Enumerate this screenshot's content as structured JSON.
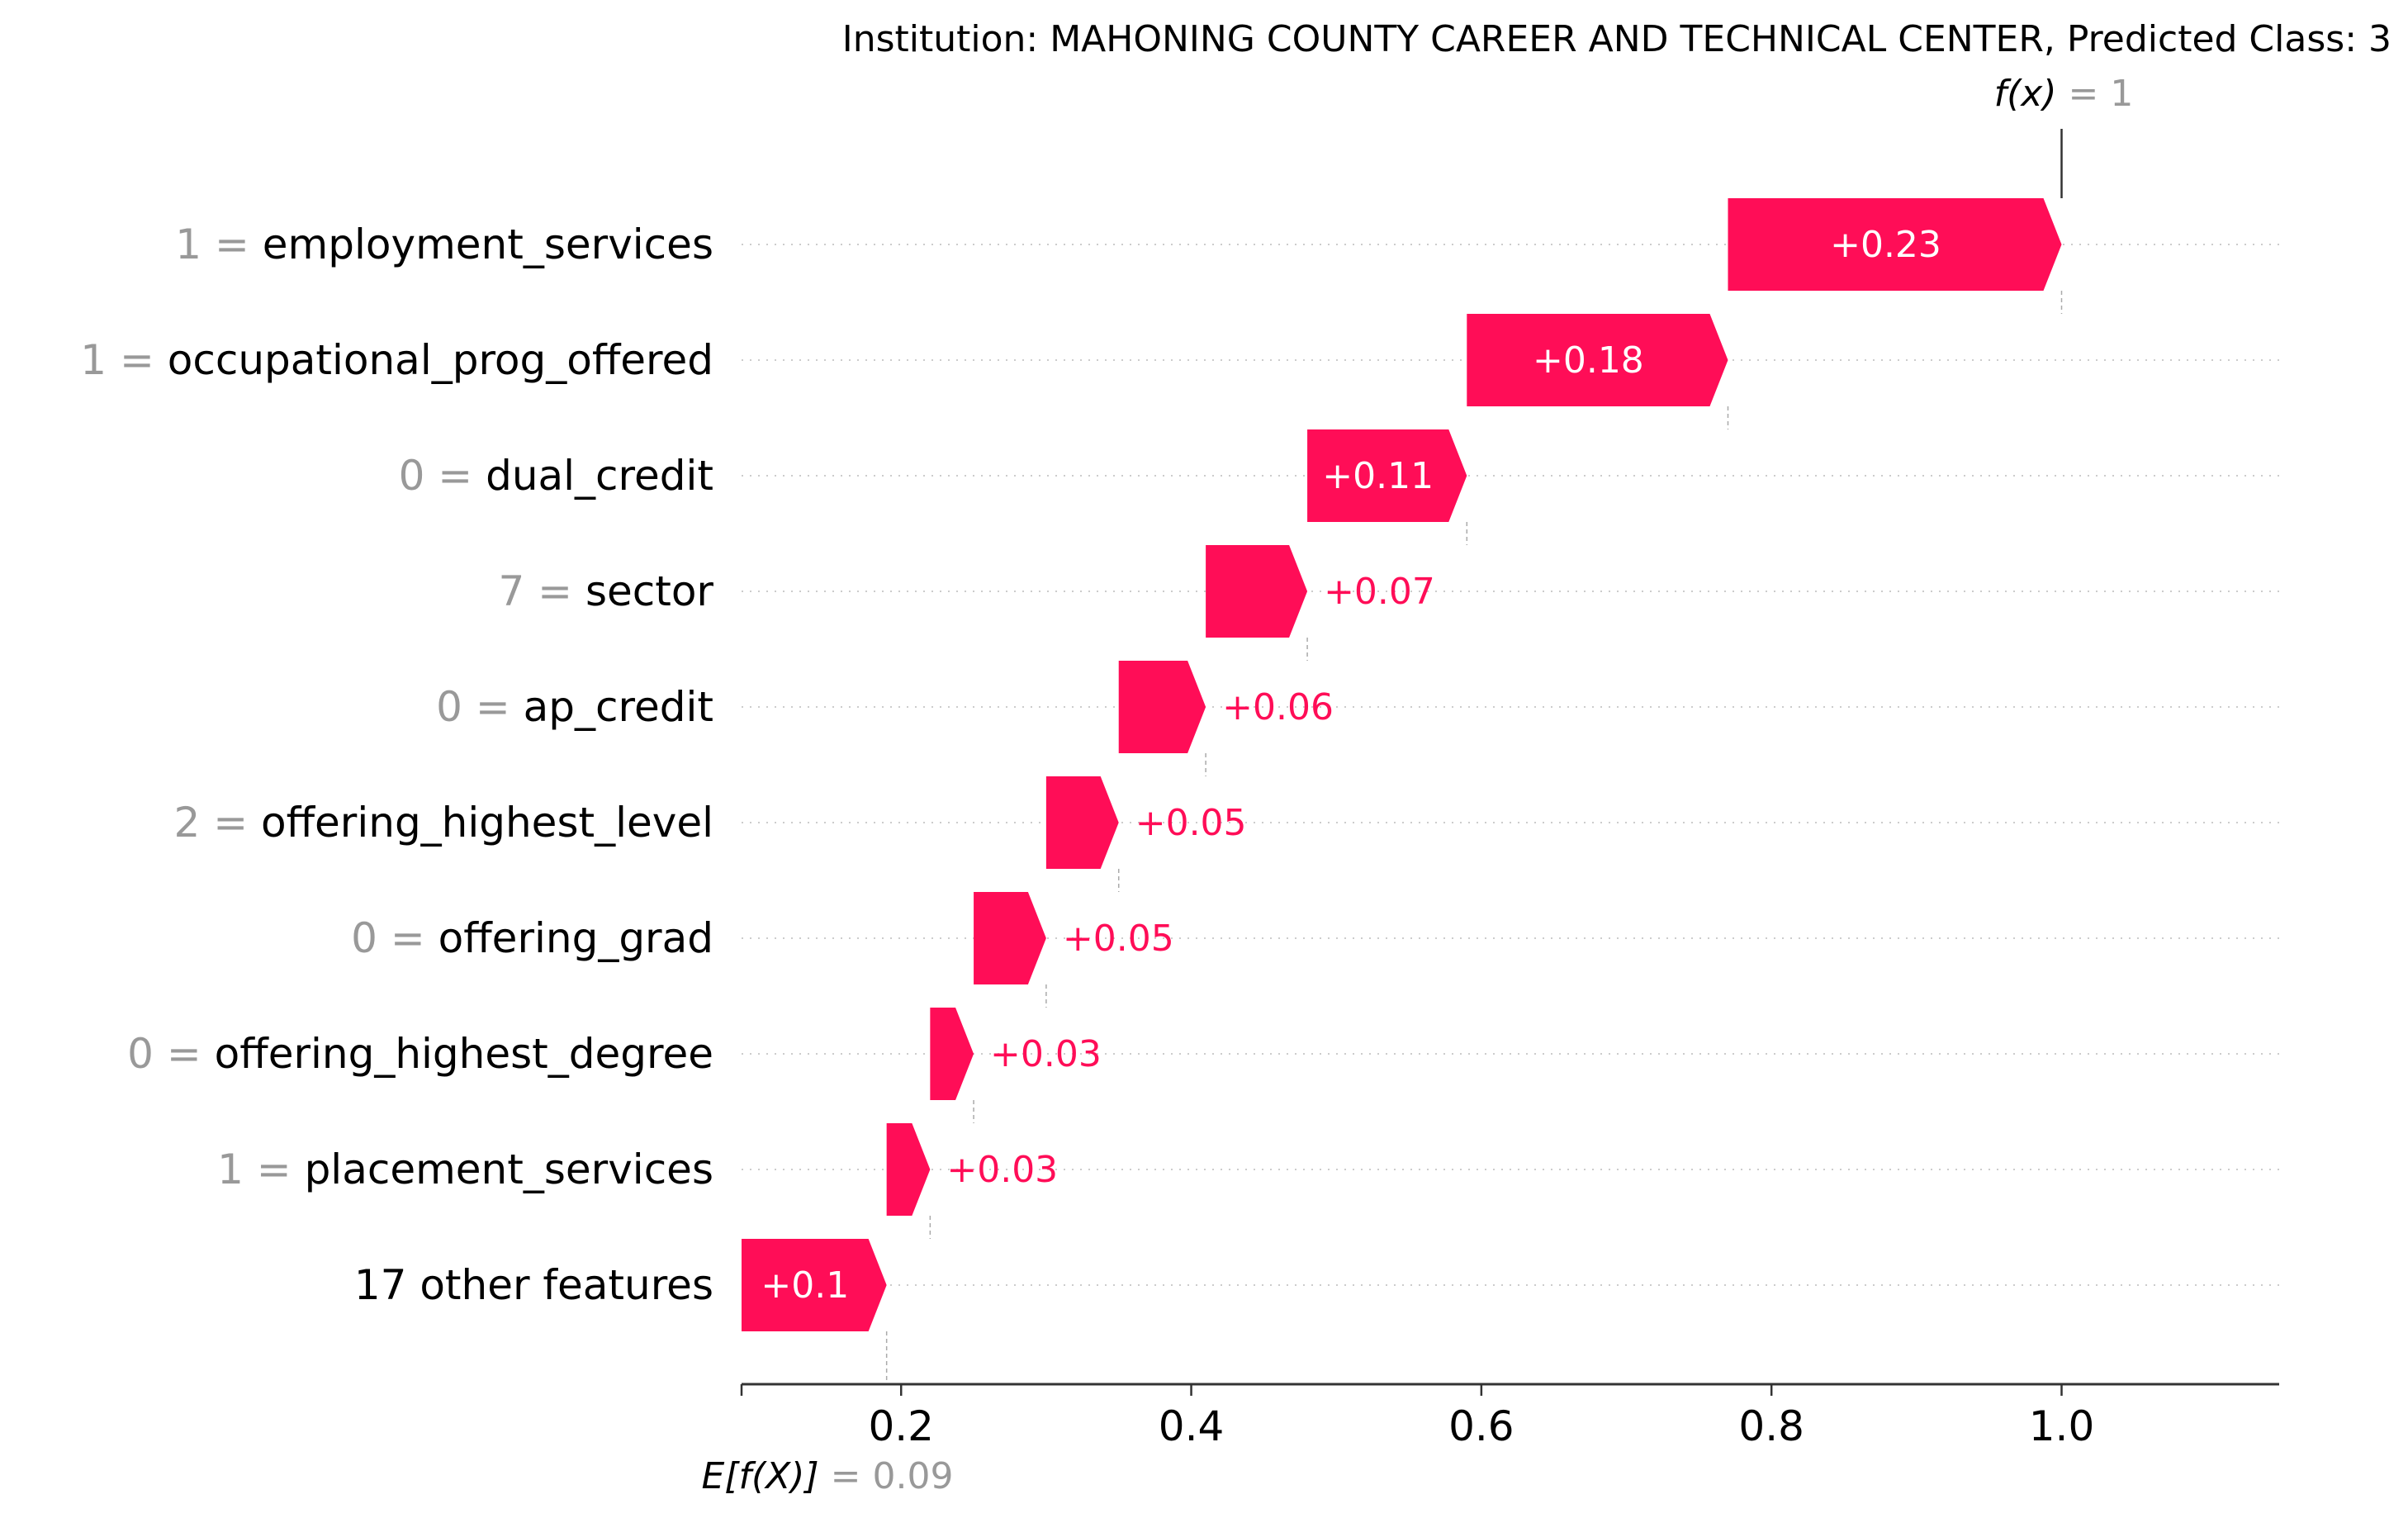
{
  "chart_data": {
    "type": "waterfall",
    "title": "Institution: MAHONING COUNTY CAREER AND TECHNICAL CENTER, Predicted Class: 3",
    "fx": {
      "label": "f(x)",
      "value_text": "1",
      "value": 1.0
    },
    "base": {
      "label": "E[f(X)]",
      "value_text": "0.09",
      "value": 0.09
    },
    "xlim": [
      0.09,
      1.15
    ],
    "xticks": [
      0.2,
      0.4,
      0.6,
      0.8,
      1.0
    ],
    "xtick_labels": [
      "0.2",
      "0.4",
      "0.6",
      "0.8",
      "1.0"
    ],
    "features": [
      {
        "value": "1",
        "name": "employment_services",
        "contribution": 0.23,
        "label": "+0.23"
      },
      {
        "value": "1",
        "name": "occupational_prog_offered",
        "contribution": 0.18,
        "label": "+0.18"
      },
      {
        "value": "0",
        "name": "dual_credit",
        "contribution": 0.11,
        "label": "+0.11"
      },
      {
        "value": "7",
        "name": "sector",
        "contribution": 0.07,
        "label": "+0.07"
      },
      {
        "value": "0",
        "name": "ap_credit",
        "contribution": 0.06,
        "label": "+0.06"
      },
      {
        "value": "2",
        "name": "offering_highest_level",
        "contribution": 0.05,
        "label": "+0.05"
      },
      {
        "value": "0",
        "name": "offering_grad",
        "contribution": 0.05,
        "label": "+0.05"
      },
      {
        "value": "0",
        "name": "offering_highest_degree",
        "contribution": 0.03,
        "label": "+0.03"
      },
      {
        "value": "1",
        "name": "placement_services",
        "contribution": 0.03,
        "label": "+0.03"
      },
      {
        "value": "",
        "name": "17 other features",
        "contribution": 0.1,
        "label": "+0.1"
      }
    ],
    "colors": {
      "positive": "#ff0d57",
      "label_gray": "#999999",
      "text": "#000000",
      "grid": "#cccccc"
    }
  }
}
